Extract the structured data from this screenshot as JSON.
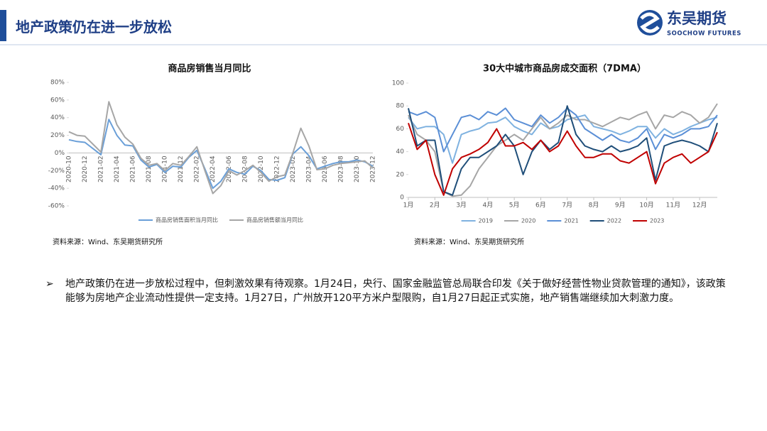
{
  "header": {
    "title": "地产政策仍在进一步放松",
    "logo_cn": "东吴期货",
    "logo_en": "SOOCHOW FUTURES"
  },
  "chart_data": [
    {
      "type": "line",
      "title": "商品房销售当月同比",
      "source": "资料来源：Wind、东吴期货研究所",
      "categories": [
        "2020-10",
        null,
        "2020-12",
        null,
        "2021-02",
        null,
        "2021-04",
        null,
        "2021-06",
        null,
        "2021-08",
        null,
        "2021-10",
        null,
        "2021-12",
        null,
        "2022-02",
        null,
        "2022-04",
        null,
        "2022-06",
        null,
        "2022-08",
        null,
        "2022-10",
        null,
        "2022-12",
        null,
        "2023-02",
        null,
        "2023-04",
        null,
        "2023-06",
        null,
        "2023-08",
        null,
        "2023-10",
        null,
        "2023-12"
      ],
      "series": [
        {
          "name": "商品房销售面积当月同比",
          "color": "#6a9fd8",
          "values": [
            15,
            13,
            12,
            5,
            -2,
            38,
            20,
            9,
            8,
            -8,
            -16,
            -13,
            -22,
            -15,
            -16,
            -5,
            3,
            -18,
            -40,
            -32,
            -18,
            -22,
            -24,
            -15,
            -20,
            -30,
            -31,
            -28,
            -1,
            7,
            -3,
            -18,
            -15,
            -12,
            -10,
            -10,
            -8,
            -10,
            -15
          ]
        },
        {
          "name": "商品房销售额当月同比",
          "color": "#a6a6a6",
          "values": [
            24,
            20,
            19,
            10,
            1,
            58,
            32,
            18,
            10,
            -6,
            -14,
            -12,
            -20,
            -12,
            -14,
            -4,
            7,
            -20,
            -46,
            -37,
            -20,
            -25,
            -20,
            -14,
            -22,
            -32,
            -27,
            -25,
            0,
            28,
            8,
            -19,
            -18,
            -14,
            -12,
            -11,
            -10,
            -9,
            -17
          ]
        }
      ],
      "ylim": [
        -60,
        80
      ],
      "yticks": [
        {
          "value": -60,
          "label": "-60%"
        },
        {
          "value": -40,
          "label": "-40%"
        },
        {
          "value": -20,
          "label": "-20%"
        },
        {
          "value": 0,
          "label": "0%"
        },
        {
          "value": 20,
          "label": "20%"
        },
        {
          "value": 40,
          "label": "40%"
        },
        {
          "value": 60,
          "label": "60%"
        },
        {
          "value": 80,
          "label": "80%"
        }
      ],
      "grid": false,
      "legend": "bottom",
      "rotate_x_labels": true
    },
    {
      "type": "line",
      "title": "30大中城市商品房成交面积（7DMA）",
      "source": "资料来源：Wind、东吴期货研究所",
      "categories": [
        "1月",
        null,
        null,
        "2月",
        null,
        null,
        "3月",
        null,
        null,
        "4月",
        null,
        null,
        "5月",
        null,
        null,
        "6月",
        null,
        null,
        "7月",
        null,
        null,
        "8月",
        null,
        null,
        "9月",
        null,
        null,
        "10月",
        null,
        null,
        "11月",
        null,
        null,
        "12月",
        null,
        null
      ],
      "series": [
        {
          "name": "2019",
          "color": "#7fb2e0",
          "values": [
            70,
            60,
            62,
            62,
            55,
            30,
            55,
            58,
            60,
            65,
            66,
            70,
            62,
            58,
            55,
            65,
            60,
            62,
            68,
            70,
            72,
            62,
            60,
            58,
            55,
            58,
            62,
            62,
            52,
            60,
            55,
            58,
            62,
            65,
            68,
            70
          ]
        },
        {
          "name": "2020",
          "color": "#a6a6a6",
          "values": [
            72,
            55,
            50,
            40,
            5,
            1,
            2,
            10,
            25,
            35,
            45,
            50,
            55,
            50,
            60,
            70,
            60,
            65,
            72,
            68,
            68,
            65,
            62,
            66,
            70,
            68,
            72,
            75,
            60,
            72,
            70,
            75,
            72,
            65,
            70,
            82
          ]
        },
        {
          "name": "2021",
          "color": "#5b8fd6",
          "values": [
            75,
            72,
            75,
            70,
            40,
            55,
            70,
            72,
            68,
            75,
            72,
            78,
            68,
            65,
            62,
            72,
            65,
            70,
            78,
            72,
            60,
            55,
            50,
            55,
            50,
            48,
            52,
            60,
            42,
            55,
            52,
            55,
            60,
            60,
            62,
            72
          ]
        },
        {
          "name": "2022",
          "color": "#1f4e79",
          "values": [
            78,
            45,
            50,
            50,
            5,
            2,
            25,
            35,
            35,
            40,
            45,
            55,
            45,
            20,
            40,
            50,
            42,
            48,
            80,
            55,
            45,
            42,
            40,
            45,
            40,
            42,
            45,
            52,
            15,
            45,
            48,
            50,
            48,
            45,
            40,
            65
          ]
        },
        {
          "name": "2023",
          "color": "#c00000",
          "values": [
            65,
            42,
            50,
            20,
            2,
            25,
            35,
            38,
            42,
            48,
            60,
            45,
            45,
            48,
            42,
            50,
            40,
            45,
            58,
            45,
            35,
            35,
            38,
            38,
            32,
            30,
            35,
            40,
            12,
            30,
            35,
            38,
            30,
            35,
            40,
            57
          ]
        }
      ],
      "ylim": [
        0,
        100
      ],
      "yticks": [
        0,
        20,
        40,
        60,
        80,
        100
      ],
      "grid": false,
      "legend": "bottom",
      "rotate_x_labels": false
    }
  ],
  "bullet": "地产政策仍在进一步放松过程中，但刺激效果有待观察。1月24日，央行、国家金融监管总局联合印发《关于做好经营性物业贷款管理的通知》，该政策能够为房地产企业流动性提供一定支持。1月27日，广州放开120平方米户型限购，自1月27日起正式实施，地产销售端继续加大刺激力度。"
}
